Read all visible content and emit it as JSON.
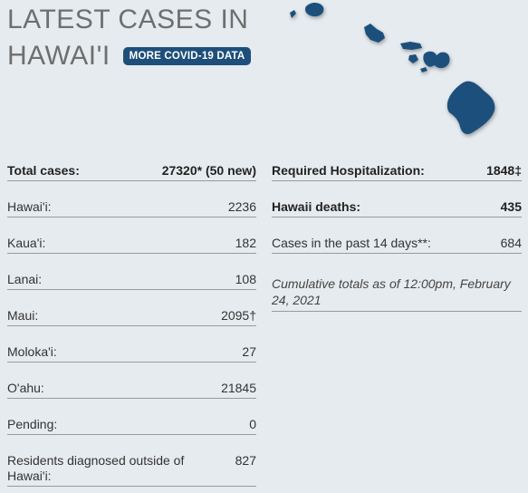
{
  "header": {
    "title_line1": "LATEST CASES IN",
    "title_line2": "HAWAI'I",
    "badge_label": "MORE COVID-19 DATA"
  },
  "map": {
    "icon": "hawaii-islands-map",
    "color": "#1e4f7b"
  },
  "left_column": {
    "total": {
      "label": "Total cases:",
      "value": "27320* (50 new)"
    },
    "islands": [
      {
        "label": "Hawai'i:",
        "value": "2236"
      },
      {
        "label": "Kaua'i:",
        "value": "182"
      },
      {
        "label": "Lanai:",
        "value": "108"
      },
      {
        "label": "Maui:",
        "value": "2095†"
      },
      {
        "label": "Moloka'i:",
        "value": "27"
      },
      {
        "label": "O'ahu:",
        "value": "21845"
      },
      {
        "label": "Pending:",
        "value": "0"
      },
      {
        "label": "Residents diagnosed outside of Hawai'i:",
        "value": "827"
      }
    ]
  },
  "right_column": {
    "hospitalization": {
      "label": "Required Hospitalization:",
      "value": "1848‡"
    },
    "deaths": {
      "label": "Hawaii deaths:",
      "value": "435"
    },
    "past14": {
      "label": "Cases in the past 14 days**:",
      "value": "684"
    },
    "note": "Cumulative totals as of 12:00pm, February 24, 2021"
  },
  "colors": {
    "background": "#e6ebef",
    "accent": "#1e4f7b",
    "title": "#6f6f6f"
  }
}
